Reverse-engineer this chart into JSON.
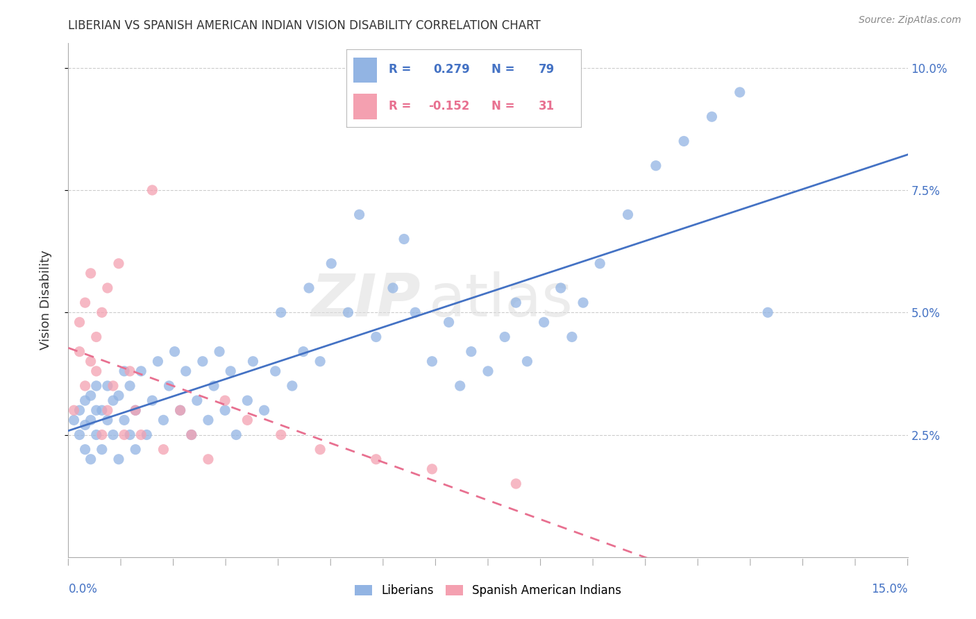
{
  "title": "LIBERIAN VS SPANISH AMERICAN INDIAN VISION DISABILITY CORRELATION CHART",
  "source": "Source: ZipAtlas.com",
  "ylabel": "Vision Disability",
  "y_ticks": [
    0.025,
    0.05,
    0.075,
    0.1
  ],
  "y_tick_labels": [
    "2.5%",
    "5.0%",
    "7.5%",
    "10.0%"
  ],
  "x_range": [
    0.0,
    0.15
  ],
  "y_range": [
    0.0,
    0.105
  ],
  "liberian_R": 0.279,
  "liberian_N": 79,
  "spanish_R": -0.152,
  "spanish_N": 31,
  "liberian_color": "#92B4E3",
  "spanish_color": "#F4A0B0",
  "liberian_line_color": "#4472C4",
  "spanish_line_color": "#E87090",
  "watermark_zip": "ZIP",
  "watermark_atlas": "atlas",
  "liberian_x": [
    0.001,
    0.002,
    0.002,
    0.003,
    0.003,
    0.003,
    0.004,
    0.004,
    0.004,
    0.005,
    0.005,
    0.005,
    0.006,
    0.006,
    0.007,
    0.007,
    0.008,
    0.008,
    0.009,
    0.009,
    0.01,
    0.01,
    0.011,
    0.011,
    0.012,
    0.012,
    0.013,
    0.014,
    0.015,
    0.016,
    0.017,
    0.018,
    0.019,
    0.02,
    0.021,
    0.022,
    0.023,
    0.024,
    0.025,
    0.026,
    0.027,
    0.028,
    0.029,
    0.03,
    0.032,
    0.033,
    0.035,
    0.037,
    0.038,
    0.04,
    0.042,
    0.043,
    0.045,
    0.047,
    0.05,
    0.052,
    0.055,
    0.058,
    0.06,
    0.062,
    0.065,
    0.068,
    0.07,
    0.072,
    0.075,
    0.078,
    0.08,
    0.082,
    0.085,
    0.088,
    0.09,
    0.092,
    0.095,
    0.1,
    0.105,
    0.11,
    0.115,
    0.12,
    0.125
  ],
  "liberian_y": [
    0.028,
    0.025,
    0.03,
    0.022,
    0.027,
    0.032,
    0.02,
    0.028,
    0.033,
    0.025,
    0.03,
    0.035,
    0.022,
    0.03,
    0.028,
    0.035,
    0.025,
    0.032,
    0.02,
    0.033,
    0.028,
    0.038,
    0.025,
    0.035,
    0.022,
    0.03,
    0.038,
    0.025,
    0.032,
    0.04,
    0.028,
    0.035,
    0.042,
    0.03,
    0.038,
    0.025,
    0.032,
    0.04,
    0.028,
    0.035,
    0.042,
    0.03,
    0.038,
    0.025,
    0.032,
    0.04,
    0.03,
    0.038,
    0.05,
    0.035,
    0.042,
    0.055,
    0.04,
    0.06,
    0.05,
    0.07,
    0.045,
    0.055,
    0.065,
    0.05,
    0.04,
    0.048,
    0.035,
    0.042,
    0.038,
    0.045,
    0.052,
    0.04,
    0.048,
    0.055,
    0.045,
    0.052,
    0.06,
    0.07,
    0.08,
    0.085,
    0.09,
    0.095,
    0.05
  ],
  "spanish_x": [
    0.001,
    0.002,
    0.002,
    0.003,
    0.003,
    0.004,
    0.004,
    0.005,
    0.005,
    0.006,
    0.006,
    0.007,
    0.007,
    0.008,
    0.009,
    0.01,
    0.011,
    0.012,
    0.013,
    0.015,
    0.017,
    0.02,
    0.022,
    0.025,
    0.028,
    0.032,
    0.038,
    0.045,
    0.055,
    0.065,
    0.08
  ],
  "spanish_y": [
    0.03,
    0.042,
    0.048,
    0.035,
    0.052,
    0.04,
    0.058,
    0.038,
    0.045,
    0.025,
    0.05,
    0.03,
    0.055,
    0.035,
    0.06,
    0.025,
    0.038,
    0.03,
    0.025,
    0.075,
    0.022,
    0.03,
    0.025,
    0.02,
    0.032,
    0.028,
    0.025,
    0.022,
    0.02,
    0.018,
    0.015
  ]
}
